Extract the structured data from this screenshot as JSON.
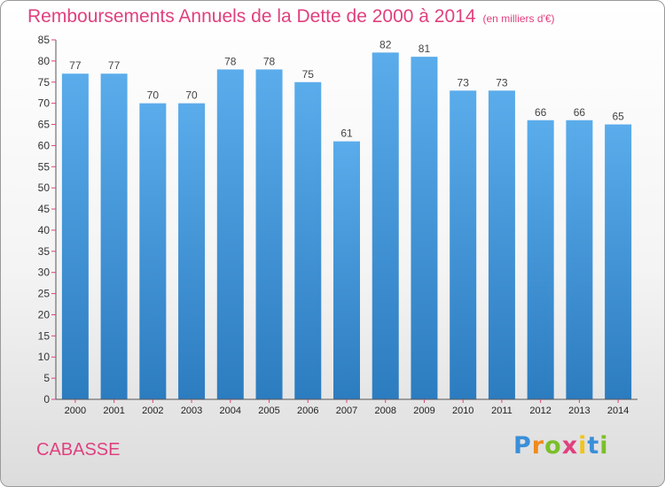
{
  "title": "Remboursements Annuels de la Dette de 2000 à 2014",
  "unit": "(en milliers d'€)",
  "place": "CABASSE",
  "brand": "Proxiti",
  "colors": {
    "accent": "#e0407e",
    "bar_top": "#5aaceb",
    "bar_bottom": "#2c7cc0"
  },
  "chart_data": {
    "type": "bar",
    "categories": [
      "2000",
      "2001",
      "2002",
      "2003",
      "2004",
      "2005",
      "2006",
      "2007",
      "2008",
      "2009",
      "2010",
      "2011",
      "2012",
      "2013",
      "2014"
    ],
    "values": [
      77,
      77,
      70,
      70,
      78,
      78,
      75,
      61,
      82,
      81,
      73,
      73,
      66,
      66,
      65
    ],
    "title": "Remboursements Annuels de la Dette de 2000 à 2014",
    "ylim": [
      0,
      85
    ],
    "ytick_step": 5,
    "grid": false,
    "data_labels": true
  }
}
